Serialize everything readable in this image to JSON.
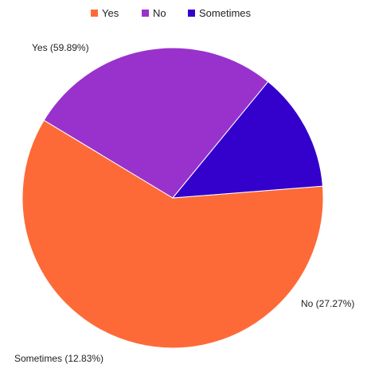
{
  "chart_data": {
    "type": "pie",
    "categories": [
      "Yes",
      "No",
      "Sometimes"
    ],
    "values": [
      59.89,
      27.27,
      12.83
    ],
    "labels": [
      "Yes (59.89%)",
      "No (27.27%)",
      "Sometimes (12.83%)"
    ],
    "colors": [
      "#fd6a37",
      "#9932cc",
      "#3300cc"
    ],
    "legend": {
      "placement": "top",
      "items": [
        "Yes",
        "No",
        "Sometimes"
      ]
    }
  }
}
